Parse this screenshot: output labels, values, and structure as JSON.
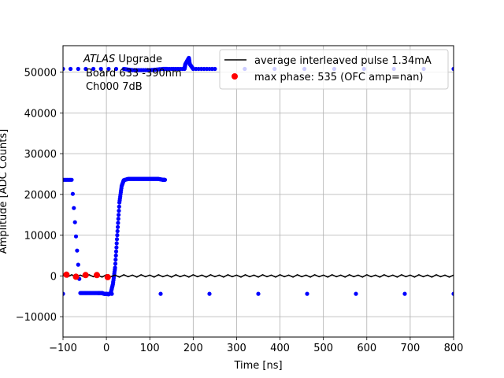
{
  "chart_data": {
    "type": "scatter",
    "xlabel": "Time [ns]",
    "ylabel": "Amplitude [ADC Counts]",
    "xlim": [
      -100,
      800
    ],
    "ylim": [
      -15000,
      56500
    ],
    "xticks": [
      -100,
      0,
      100,
      200,
      300,
      400,
      500,
      600,
      700,
      800
    ],
    "yticks": [
      -10000,
      0,
      10000,
      20000,
      30000,
      40000,
      50000
    ],
    "xtick_labels": [
      "−100",
      "0",
      "100",
      "200",
      "300",
      "400",
      "500",
      "600",
      "700",
      "800"
    ],
    "ytick_labels": [
      "−10000",
      "0",
      "10000",
      "20000",
      "30000",
      "40000",
      "50000"
    ],
    "grid": true,
    "legend_position": "upper right",
    "annotation": {
      "line1_italic": "ATLAS",
      "line1_rest": " Upgrade",
      "line2": "Board 633 -390nm",
      "line3": "Ch000 7dB"
    },
    "series": [
      {
        "name": "average interleaved pulse 1.34mA",
        "kind": "line",
        "color": "#000000",
        "x": [
          -100,
          -90,
          -80,
          -70,
          -60,
          -50,
          -40,
          -30,
          -20,
          -10,
          0,
          10,
          20,
          30,
          40,
          50,
          60,
          70,
          80,
          90,
          100,
          110,
          120,
          130,
          140,
          150,
          160,
          170,
          180,
          190,
          200,
          210,
          220,
          230,
          240,
          250,
          260,
          270,
          280,
          290,
          300,
          310,
          320,
          330,
          340,
          350,
          360,
          370,
          380,
          390,
          400,
          410,
          420,
          430,
          440,
          450,
          460,
          470,
          480,
          490,
          500,
          510,
          520,
          530,
          540,
          550,
          560,
          570,
          580,
          590,
          600,
          610,
          620,
          630,
          640,
          650,
          660,
          670,
          680,
          690,
          700,
          710,
          720,
          730,
          740,
          750,
          760,
          770,
          780,
          790,
          800
        ],
        "y": [
          200,
          -300,
          300,
          -200,
          200,
          -300,
          300,
          -200,
          200,
          -300,
          300,
          -200,
          200,
          -300,
          300,
          -200,
          200,
          -300,
          300,
          -200,
          200,
          -300,
          300,
          -200,
          200,
          -300,
          300,
          -200,
          200,
          -300,
          300,
          -200,
          200,
          -300,
          300,
          -200,
          200,
          -300,
          300,
          -200,
          200,
          -300,
          300,
          -200,
          200,
          -300,
          300,
          -200,
          200,
          -300,
          300,
          -200,
          200,
          -300,
          300,
          -200,
          200,
          -300,
          300,
          -200,
          200,
          -300,
          300,
          -200,
          200,
          -300,
          300,
          -200,
          200,
          -300,
          300,
          -200,
          200,
          -300,
          300,
          -200,
          200,
          -300,
          300,
          -200,
          200,
          -300,
          300,
          -200,
          200,
          -300,
          300,
          -200,
          200,
          -300,
          200
        ]
      },
      {
        "name": "max phase: 535 (OFC amp=nan)",
        "kind": "markers",
        "color": "#ff0000",
        "x": [
          -92,
          -70,
          -48,
          -22,
          3
        ],
        "y": [
          300,
          -200,
          200,
          200,
          -300
        ]
      }
    ],
    "untitled_series": [
      {
        "kind": "markers",
        "color": "#0000ff",
        "segments": [
          {
            "x": [
              -100,
              40,
              60,
              100,
              130,
              140,
              180,
              182,
              190,
              192,
              200,
              250,
              800
            ],
            "y": [
              50800,
              50800,
              50500,
              50500,
              50800,
              50800,
              50800,
              52000,
              53500,
              52000,
              50800,
              50800,
              50800
            ]
          },
          {
            "x": [
              -100,
              -80,
              -60,
              -40,
              -20,
              -10,
              -5,
              0,
              5,
              10,
              15,
              20,
              25,
              30,
              35,
              40,
              50,
              60,
              70,
              80,
              90,
              100,
              110,
              120,
              130,
              135
            ],
            "y": [
              23600,
              23600,
              -4200,
              -4200,
              -4200,
              -4200,
              -4400,
              -4400,
              -4500,
              -4200,
              -2000,
              2000,
              10000,
              18000,
              22000,
              23500,
              23800,
              23800,
              23800,
              23800,
              23800,
              23800,
              23800,
              23800,
              23600,
              23600
            ]
          },
          {
            "x": [
              -100,
              800
            ],
            "y": [
              -4400,
              -4400
            ]
          }
        ]
      }
    ]
  }
}
